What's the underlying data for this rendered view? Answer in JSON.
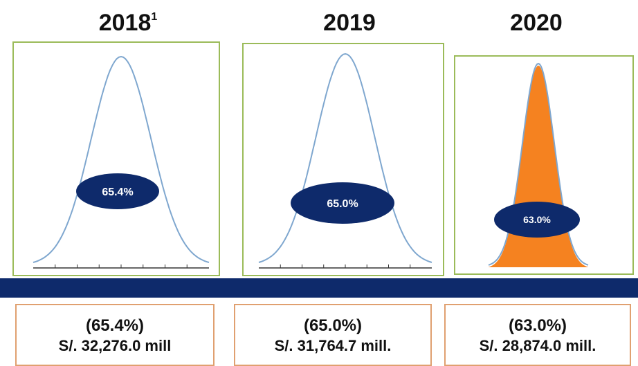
{
  "chart_data": [
    {
      "type": "area",
      "title": "2018",
      "title_superscript": "1",
      "label": "65.4%",
      "filled": false,
      "footer": {
        "percent": "(65.4%)",
        "amount": "S/. 32,276.0 mill"
      }
    },
    {
      "type": "area",
      "title": "2019",
      "title_superscript": "",
      "label": "65.0%",
      "filled": false,
      "footer": {
        "percent": "(65.0%)",
        "amount": "S/. 31,764.7 mill."
      }
    },
    {
      "type": "area",
      "title": "2020",
      "title_superscript": "",
      "label": "63.0%",
      "filled": true,
      "footer": {
        "percent": "(63.0%)",
        "amount": "S/. 28,874.0 mill."
      }
    }
  ],
  "colors": {
    "panel_border": "#9bbb59",
    "curve": "#7fa7cf",
    "fill": "#f58220",
    "ellipse": "#0e2a6b",
    "divider": "#0e2a6b",
    "footer_border": "#e0a070"
  }
}
